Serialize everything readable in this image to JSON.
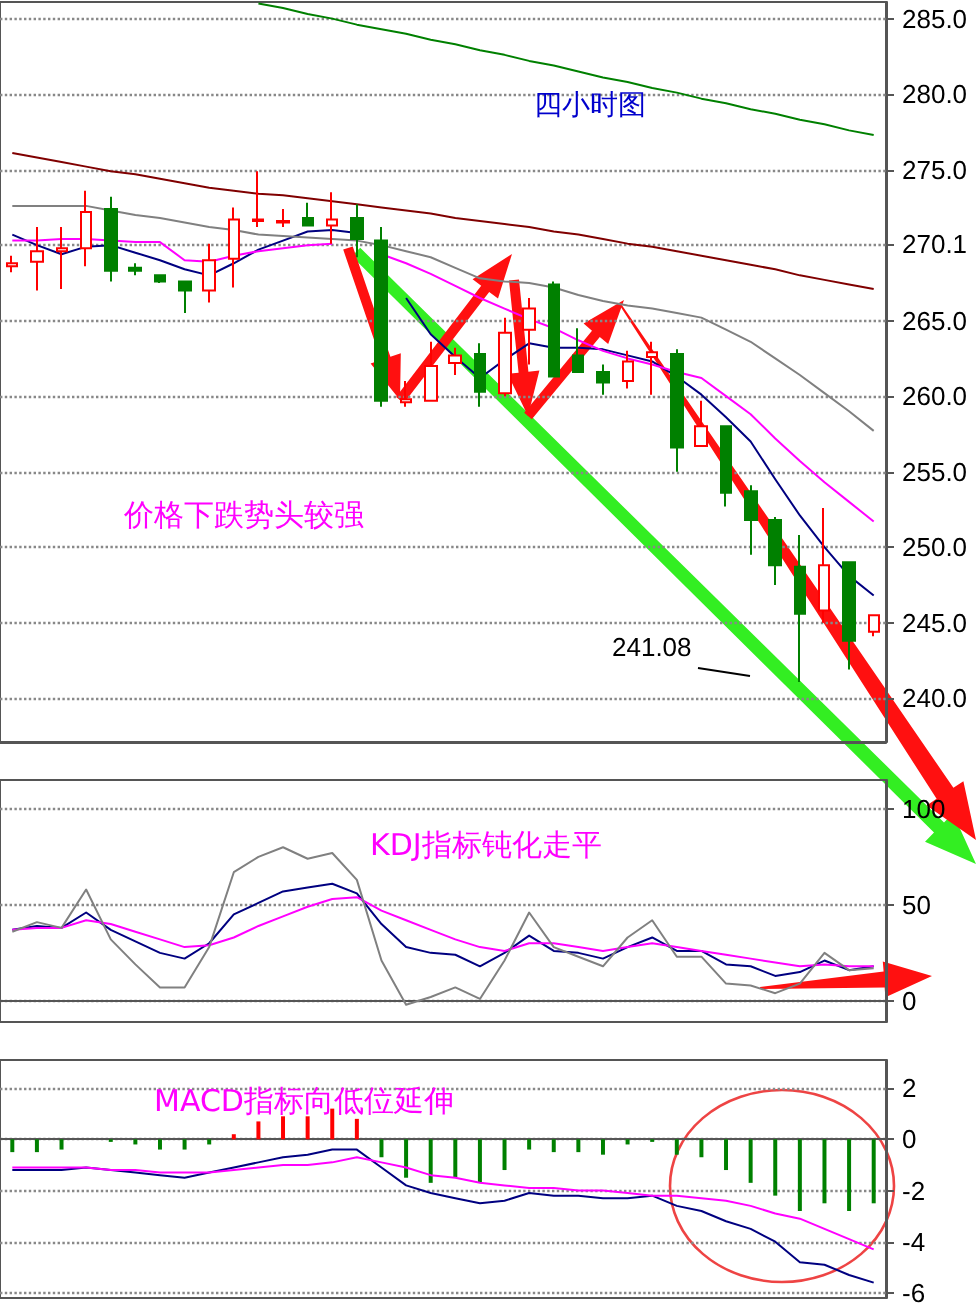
{
  "chart_data": [
    {
      "type": "candlestick",
      "title": "四小时图",
      "categories": [
        null,
        null,
        null,
        null,
        null,
        null,
        null,
        null,
        null,
        null,
        null,
        null,
        null,
        null,
        null,
        null,
        null,
        null,
        null,
        null,
        null,
        null,
        null,
        null,
        null,
        null,
        null,
        null,
        null,
        null,
        null,
        null,
        null,
        null,
        null,
        null
      ],
      "ohlc": [
        [
          268.6,
          269.3,
          268.2,
          268.8
        ],
        [
          268.9,
          271.2,
          267.0,
          269.6
        ],
        [
          269.6,
          271.2,
          267.1,
          269.8
        ],
        [
          269.8,
          273.6,
          268.6,
          272.2
        ],
        [
          272.4,
          273.2,
          267.6,
          268.3
        ],
        [
          268.5,
          268.8,
          268.0,
          268.3
        ],
        [
          268.0,
          268.0,
          267.5,
          267.6
        ],
        [
          267.6,
          267.6,
          265.5,
          267.0
        ],
        [
          267.0,
          270.1,
          266.2,
          269.0
        ],
        [
          269.1,
          272.5,
          267.2,
          271.7
        ],
        [
          271.6,
          274.9,
          271.2,
          271.7
        ],
        [
          271.5,
          272.4,
          271.2,
          271.6
        ],
        [
          271.8,
          272.8,
          271.3,
          271.3
        ],
        [
          271.3,
          273.5,
          270.1,
          271.7
        ],
        [
          271.8,
          272.7,
          269.2,
          270.4
        ],
        [
          270.3,
          271.2,
          259.3,
          259.7
        ],
        [
          259.6,
          261.0,
          259.3,
          259.8
        ],
        [
          259.7,
          263.6,
          259.7,
          262.0
        ],
        [
          262.2,
          263.2,
          261.4,
          262.7
        ],
        [
          262.8,
          263.5,
          259.3,
          260.3
        ],
        [
          260.2,
          265.2,
          260.0,
          264.2
        ],
        [
          264.4,
          266.5,
          262.1,
          265.8
        ],
        [
          267.4,
          267.6,
          261.3,
          261.3
        ],
        [
          262.7,
          264.5,
          261.6,
          261.6
        ],
        [
          261.6,
          262.1,
          260.1,
          260.9
        ],
        [
          261.0,
          263.0,
          260.5,
          262.3
        ],
        [
          262.6,
          263.6,
          260.1,
          262.9
        ],
        [
          262.8,
          263.1,
          255.0,
          256.6
        ],
        [
          256.7,
          259.7,
          256.7,
          258.0
        ],
        [
          258.0,
          258.0,
          252.7,
          253.6
        ],
        [
          253.7,
          254.1,
          249.5,
          251.8
        ],
        [
          251.8,
          252.0,
          247.5,
          248.8
        ],
        [
          248.7,
          250.8,
          241.08,
          245.6
        ],
        [
          245.8,
          252.6,
          245.0,
          248.8
        ],
        [
          249.0,
          249.0,
          241.9,
          243.8
        ],
        [
          244.4,
          245.5,
          244.1,
          245.5
        ]
      ],
      "series": [
        {
          "type": "line",
          "color": "#000080",
          "values": [
            270.7,
            270.0,
            269.4,
            269.9,
            270.0,
            269.5,
            269.0,
            268.4,
            268.0,
            268.8,
            269.7,
            270.3,
            270.9,
            271.0,
            270.8,
            null,
            266.5,
            264.1,
            262.6,
            261.2,
            262.4,
            263.5,
            263.2,
            263.2,
            263.1,
            262.7,
            262.3,
            261.3,
            260.1,
            258.6,
            257.0,
            254.5,
            252.1,
            250.0,
            248.1,
            246.8
          ]
        },
        {
          "type": "line",
          "color": "#ff00ff",
          "values": [
            270.3,
            270.3,
            270.4,
            270.4,
            270.3,
            270.2,
            270.2,
            269.0,
            268.9,
            269.3,
            269.6,
            269.8,
            270.0,
            270.1,
            null,
            269.4,
            268.8,
            268.1,
            267.3,
            266.5,
            265.8,
            265.1,
            264.5,
            263.7,
            263.0,
            262.5,
            262.1,
            261.6,
            261.2,
            260.0,
            258.8,
            257.2,
            255.7,
            254.3,
            253.0,
            251.7
          ]
        },
        {
          "type": "line",
          "color": "#808080",
          "values": [
            272.6,
            272.6,
            272.6,
            272.6,
            272.3,
            272.0,
            271.8,
            271.5,
            271.2,
            271.0,
            270.7,
            270.6,
            270.5,
            270.4,
            270.3,
            270.0,
            269.6,
            269.2,
            268.5,
            267.8,
            267.6,
            267.5,
            267.2,
            266.7,
            266.3,
            266.0,
            265.8,
            265.5,
            265.2,
            264.4,
            263.6,
            262.5,
            261.4,
            260.2,
            259.0,
            257.7
          ]
        },
        {
          "type": "line",
          "color": "#800000",
          "values": [
            276.1,
            275.8,
            275.5,
            275.2,
            274.9,
            274.7,
            274.4,
            274.1,
            273.8,
            273.6,
            273.4,
            273.3,
            273.1,
            272.9,
            272.7,
            272.5,
            272.3,
            272.1,
            271.8,
            271.6,
            271.4,
            271.2,
            270.9,
            270.7,
            270.4,
            270.1,
            269.9,
            269.6,
            269.3,
            269.0,
            268.7,
            268.4,
            268.0,
            267.7,
            267.4,
            267.1
          ]
        },
        {
          "type": "line",
          "color": "#008000",
          "values": [
            null,
            null,
            null,
            null,
            null,
            null,
            null,
            null,
            null,
            null,
            286.0,
            285.7,
            285.3,
            285.0,
            284.6,
            284.3,
            284.0,
            283.6,
            283.3,
            282.9,
            282.6,
            282.2,
            281.9,
            281.5,
            281.1,
            280.8,
            280.4,
            280.1,
            279.7,
            279.4,
            279.0,
            278.7,
            278.3,
            278.0,
            277.6,
            277.3
          ]
        }
      ],
      "ylim": [
        237.1,
        286.1
      ],
      "yticks": [
        {
          "value": 285,
          "label": "285.0"
        },
        {
          "value": 280,
          "label": "280.0"
        },
        {
          "value": 275,
          "label": "275.0"
        },
        {
          "value": 270.1,
          "label": "270.1"
        },
        {
          "value": 265,
          "label": "265.0"
        },
        {
          "value": 260,
          "label": "260.0"
        },
        {
          "value": 255,
          "label": "255.0"
        },
        {
          "value": 250,
          "label": "250.0"
        },
        {
          "value": 245,
          "label": "245.0"
        },
        {
          "value": 240,
          "label": "240.0"
        }
      ],
      "grid": "y",
      "tick_labels": "y",
      "annotations": [
        "价格下跌势头较强",
        "241.08"
      ]
    },
    {
      "type": "line",
      "categories": [
        null,
        null,
        null,
        null,
        null,
        null,
        null,
        null,
        null,
        null,
        null,
        null,
        null,
        null,
        null,
        null,
        null,
        null,
        null,
        null,
        null,
        null,
        null,
        null,
        null,
        null,
        null,
        null,
        null,
        null,
        null,
        null,
        null,
        null,
        null,
        null
      ],
      "series": [
        {
          "color": "#000080",
          "values": [
            37,
            39,
            38,
            46,
            37,
            31,
            25,
            22,
            30,
            45,
            51,
            57,
            59,
            61,
            56,
            40,
            28,
            25,
            24,
            18,
            25,
            34,
            26,
            25,
            22,
            28,
            33,
            26,
            26,
            19,
            18,
            13,
            15,
            21,
            16,
            18
          ]
        },
        {
          "color": "#ff00ff",
          "values": [
            37,
            38,
            38,
            42,
            40,
            36,
            32,
            28,
            29,
            33,
            39,
            44,
            49,
            53,
            54,
            47,
            42,
            37,
            32,
            28,
            26,
            30,
            30,
            28,
            26,
            28,
            30,
            28,
            26,
            24,
            22,
            20,
            18,
            19,
            18,
            18
          ]
        },
        {
          "color": "#808080",
          "values": [
            36,
            41,
            38,
            58,
            32,
            19,
            7,
            7,
            28,
            67,
            75,
            80,
            74,
            77,
            63,
            21,
            -2,
            2,
            7,
            1,
            21,
            46,
            28,
            23,
            18,
            33,
            42,
            23,
            23,
            9,
            8,
            4,
            9,
            25,
            16,
            17
          ]
        }
      ],
      "ylim": [
        -11,
        115
      ],
      "yticks": [
        0,
        50,
        100
      ],
      "grid": "y",
      "tick_labels": "y",
      "annotations": [
        "KDJ指标钝化走平"
      ]
    },
    {
      "type": "bar",
      "categories": [
        null,
        null,
        null,
        null,
        null,
        null,
        null,
        null,
        null,
        null,
        null,
        null,
        null,
        null,
        null,
        null,
        null,
        null,
        null,
        null,
        null,
        null,
        null,
        null,
        null,
        null,
        null,
        null,
        null,
        null,
        null,
        null,
        null,
        null,
        null,
        null
      ],
      "series": [
        {
          "type": "bar",
          "colors": [
            "#008000",
            "#008000",
            "#008000",
            "#008000",
            "#008000",
            "#008000",
            "#008000",
            "#008000",
            "#008000",
            "#ff0000",
            "#ff0000",
            "#ff0000",
            "#ff0000",
            "#ff0000",
            "#ff0000",
            "#008000",
            "#008000",
            "#008000",
            "#008000",
            "#008000",
            "#008000",
            "#008000",
            "#008000",
            "#008000",
            "#008000",
            "#008000",
            "#008000",
            "#008000",
            "#008000",
            "#008000",
            "#008000",
            "#008000",
            "#008000",
            "#008000",
            "#008000",
            "#008000"
          ],
          "values": [
            -0.5,
            -0.5,
            -0.4,
            0,
            -0.1,
            -0.2,
            -0.4,
            -0.4,
            -0.2,
            0.2,
            0.7,
            0.9,
            0.9,
            1.2,
            0.8,
            -0.7,
            -1.5,
            -1.7,
            -1.5,
            -1.7,
            -1.2,
            -0.4,
            -0.5,
            -0.5,
            -0.6,
            -0.2,
            -0.1,
            -0.6,
            -0.7,
            -1.2,
            -1.7,
            -2.2,
            -2.8,
            -2.5,
            -2.8,
            -2.5
          ]
        },
        {
          "type": "line",
          "color": "#000080",
          "values": [
            -1.2,
            -1.2,
            -1.2,
            -1.1,
            -1.2,
            -1.3,
            -1.4,
            -1.5,
            -1.3,
            -1.1,
            -0.9,
            -0.7,
            -0.6,
            -0.4,
            -0.4,
            -1.1,
            -1.8,
            -2.1,
            -2.3,
            -2.5,
            -2.4,
            -2.1,
            -2.2,
            -2.2,
            -2.3,
            -2.3,
            -2.2,
            -2.6,
            -2.8,
            -3.2,
            -3.5,
            -4.0,
            -4.8,
            -4.9,
            -5.3,
            -5.6
          ]
        },
        {
          "type": "line",
          "color": "#ff00ff",
          "values": [
            -1.1,
            -1.1,
            -1.1,
            -1.1,
            -1.2,
            -1.2,
            -1.3,
            -1.3,
            -1.3,
            -1.2,
            -1.1,
            -1.0,
            -1.0,
            -0.9,
            -0.7,
            -0.9,
            -1.1,
            -1.4,
            -1.5,
            -1.7,
            -1.8,
            -1.9,
            -1.9,
            -2.0,
            -2.0,
            -2.1,
            -2.2,
            -2.2,
            -2.3,
            -2.4,
            -2.6,
            -2.9,
            -3.1,
            -3.5,
            -3.9,
            -4.3
          ]
        }
      ],
      "ylim": [
        -6.2,
        3.1
      ],
      "yticks": [
        -6,
        -4,
        -2,
        0,
        2
      ],
      "grid": "y",
      "tick_labels": "y",
      "annotations": [
        "MACD指标向低位延伸"
      ]
    }
  ]
}
